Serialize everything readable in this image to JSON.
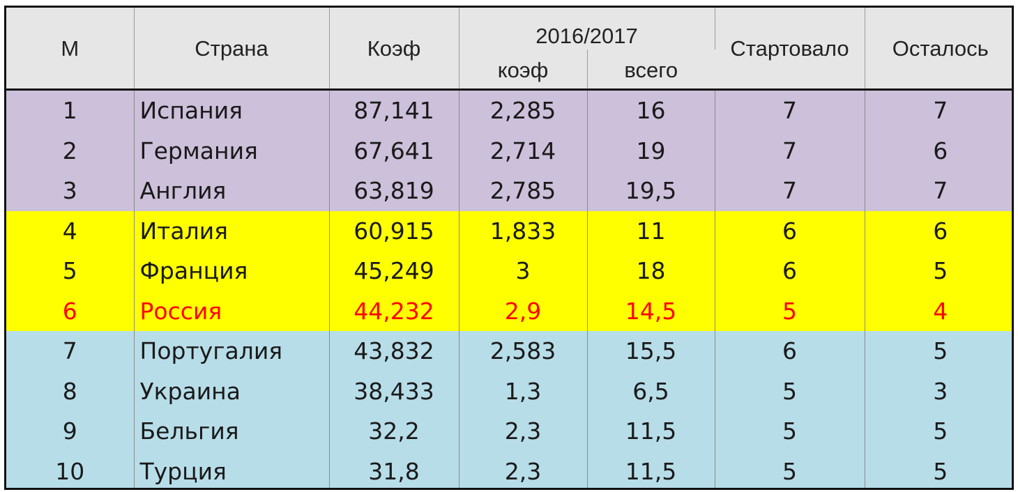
{
  "header": {
    "col_m": "М",
    "col_country": "Страна",
    "col_coef": "Коэф",
    "col_season": "2016/2017",
    "col_season_coef": "коэф",
    "col_season_total": "всего",
    "col_started": "Стартовало",
    "col_remaining": "Осталось"
  },
  "colors": {
    "group_1": "#ccc0da",
    "group_2": "#ffff00",
    "group_3": "#b7dde8",
    "highlight_text": "#ff0000",
    "header_bg": "#e6e6e6"
  },
  "rows": [
    {
      "m": "1",
      "country": "Испания",
      "coef": "87,141",
      "season_coef": "2,285",
      "season_total": "16",
      "started": "7",
      "remaining": "7"
    },
    {
      "m": "2",
      "country": "Германия",
      "coef": "67,641",
      "season_coef": "2,714",
      "season_total": "19",
      "started": "7",
      "remaining": "6"
    },
    {
      "m": "3",
      "country": "Англия",
      "coef": "63,819",
      "season_coef": "2,785",
      "season_total": "19,5",
      "started": "7",
      "remaining": "7"
    },
    {
      "m": "4",
      "country": "Италия",
      "coef": "60,915",
      "season_coef": "1,833",
      "season_total": "11",
      "started": "6",
      "remaining": "6"
    },
    {
      "m": "5",
      "country": "Франция",
      "coef": "45,249",
      "season_coef": "3",
      "season_total": "18",
      "started": "6",
      "remaining": "5"
    },
    {
      "m": "6",
      "country": "Россия",
      "coef": "44,232",
      "season_coef": "2,9",
      "season_total": "14,5",
      "started": "5",
      "remaining": "4"
    },
    {
      "m": "7",
      "country": "Португалия",
      "coef": "43,832",
      "season_coef": "2,583",
      "season_total": "15,5",
      "started": "6",
      "remaining": "5"
    },
    {
      "m": "8",
      "country": "Украина",
      "coef": "38,433",
      "season_coef": "1,3",
      "season_total": "6,5",
      "started": "5",
      "remaining": "3"
    },
    {
      "m": "9",
      "country": "Бельгия",
      "coef": "32,2",
      "season_coef": "2,3",
      "season_total": "11,5",
      "started": "5",
      "remaining": "5"
    },
    {
      "m": "10",
      "country": "Турция",
      "coef": "31,8",
      "season_coef": "2,3",
      "season_total": "11,5",
      "started": "5",
      "remaining": "5"
    }
  ]
}
